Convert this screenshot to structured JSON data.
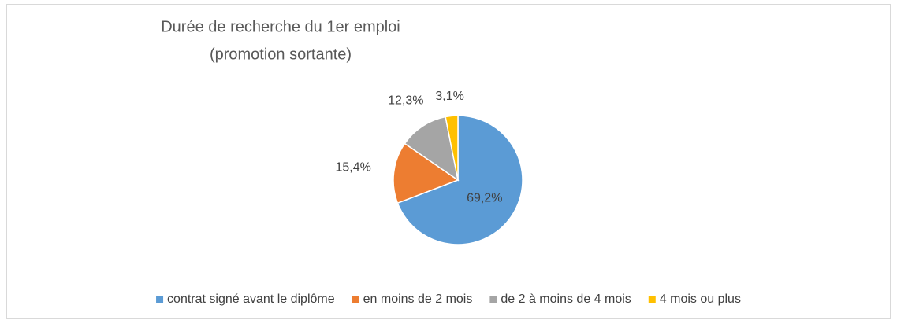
{
  "chart_data": {
    "type": "pie",
    "title": [
      "Durée de recherche du 1er emploi",
      "(promotion sortante)"
    ],
    "categories": [
      "contrat signé avant le diplôme",
      "en moins de 2 mois",
      "de 2 à moins de 4 mois",
      "4 mois ou plus"
    ],
    "values": [
      69.2,
      15.4,
      12.3,
      3.1
    ],
    "value_labels": [
      "69,2%",
      "15,4%",
      "12,3%",
      "3,1%"
    ],
    "colors": [
      "#5b9bd5",
      "#ed7d31",
      "#a5a5a5",
      "#ffc000"
    ],
    "legend": "bottom"
  }
}
